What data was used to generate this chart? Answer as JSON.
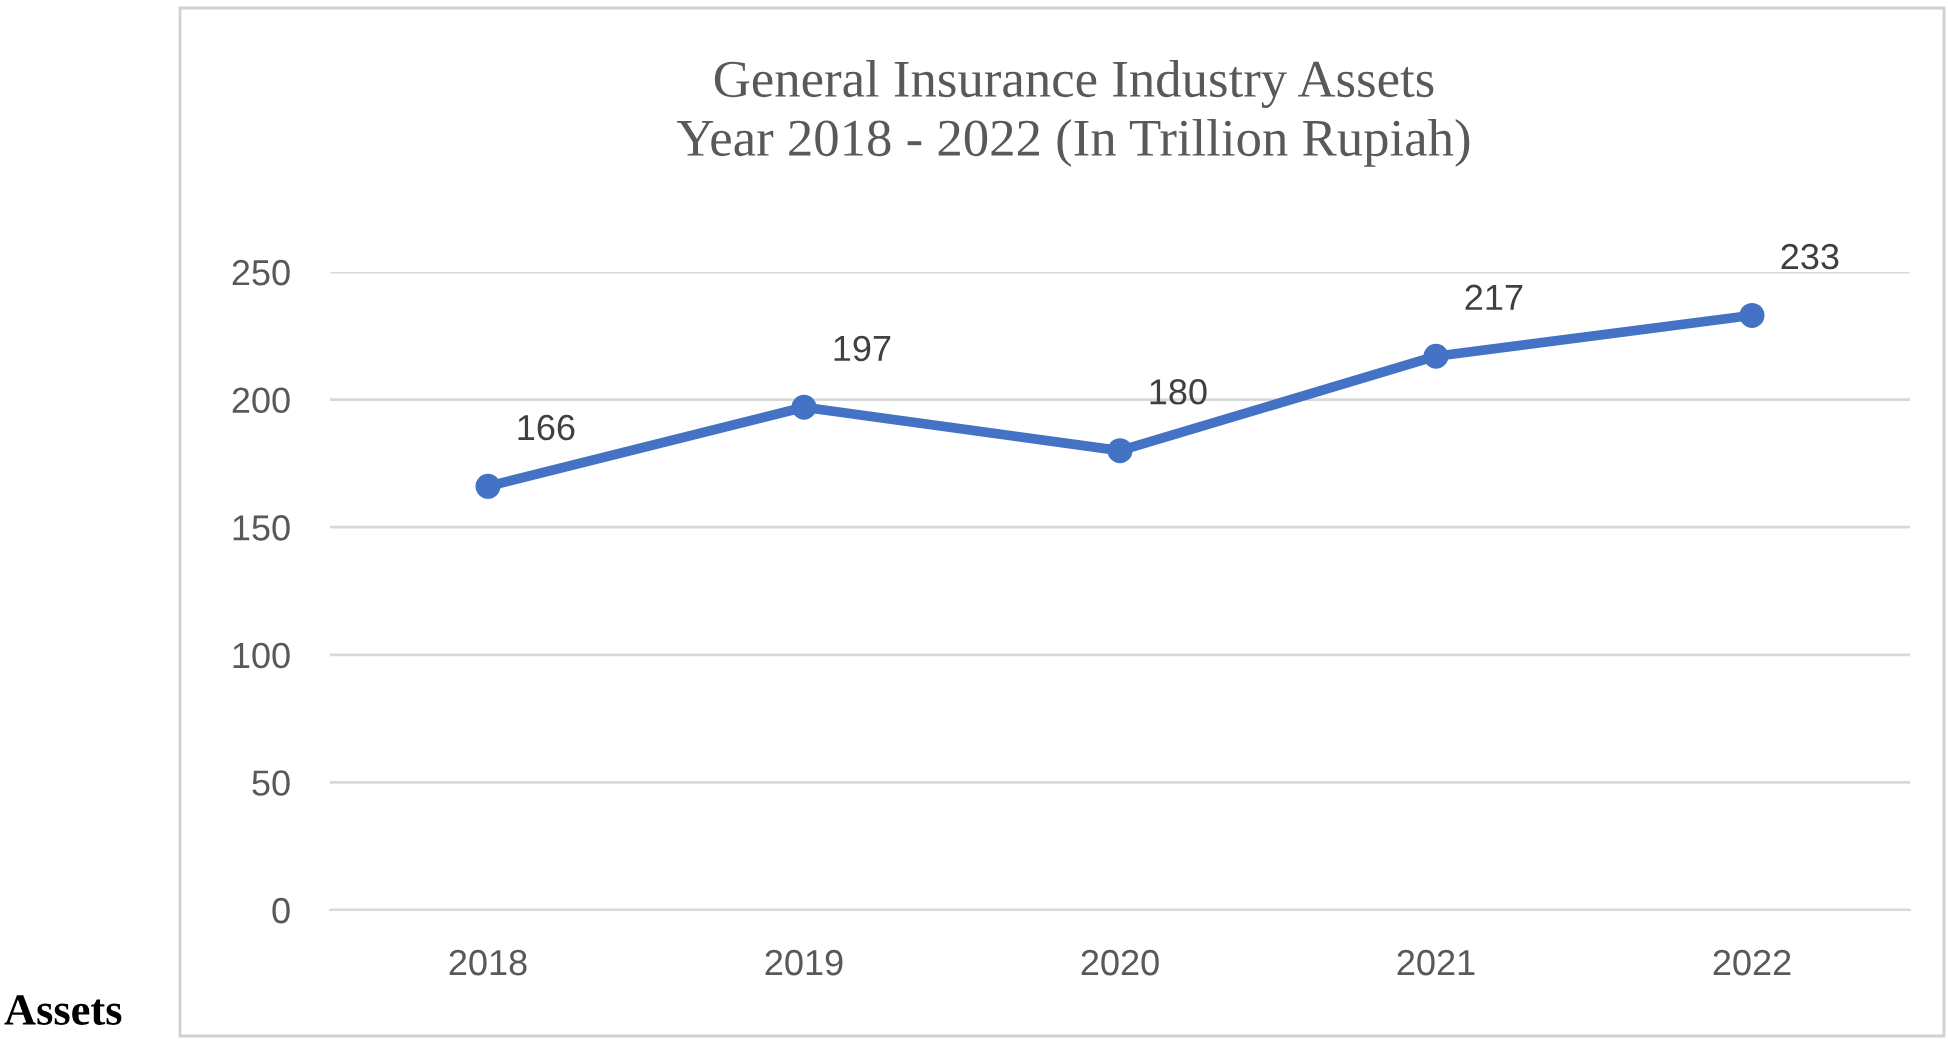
{
  "chart_data": {
    "type": "line",
    "title": "General Insurance Industry Assets\nYear 2018 - 2022 (In Trillion Rupiah)",
    "categories": [
      "2018",
      "2019",
      "2020",
      "2021",
      "2022"
    ],
    "series": [
      {
        "color": "#4472c4",
        "values": [
          166,
          197,
          180,
          217,
          233
        ]
      }
    ],
    "ylim": [
      0,
      250
    ],
    "yticks": [
      0,
      50,
      100,
      150,
      200,
      250
    ],
    "grid": "y",
    "marker": "circle",
    "line_style": "solid",
    "data_labels": true,
    "annotations": [
      "Assets"
    ]
  }
}
